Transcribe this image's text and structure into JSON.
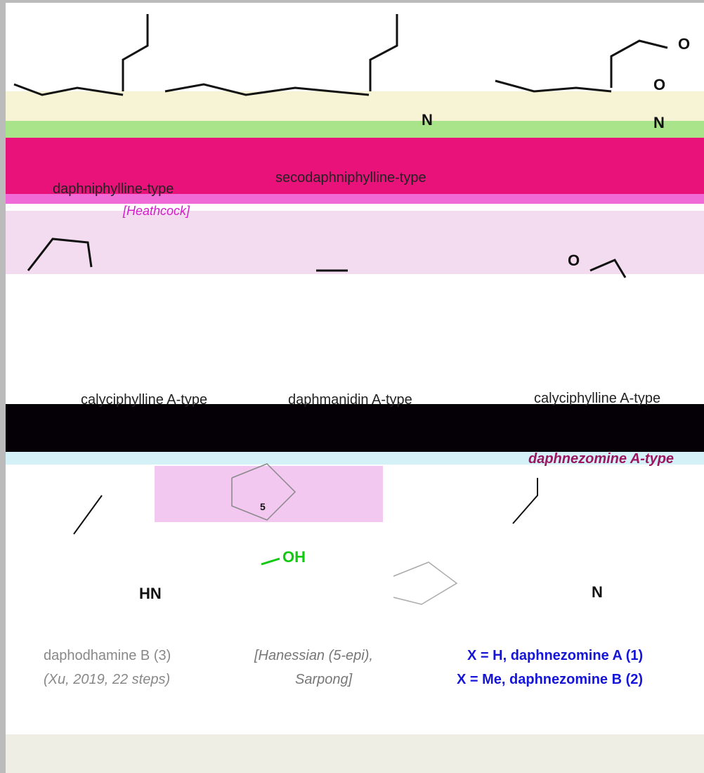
{
  "row1": {
    "labels": [
      "daphniphylline-type",
      "secodaphniphylline-type",
      "[Heathcock]"
    ]
  },
  "row2": {
    "labels": [
      "calyciphylline A-type",
      "daphmanidin A-type",
      "calyciphylline A-type",
      "daphnezomine A-type"
    ]
  },
  "structures": {
    "atoms": [
      "O",
      "O",
      "N",
      "N",
      "O",
      "5",
      "OH",
      "HN",
      "N"
    ]
  },
  "compounds": {
    "left": {
      "name": "daphodhamine B (3)",
      "ref": "(Xu, 2019, 22 steps)"
    },
    "middle": {
      "ref1": "[Hanessian (5-epi),",
      "ref2": "Sarpong]"
    },
    "right": {
      "name1": "X = H, daphnezomine A (1)",
      "name2": "X = Me, daphnezomine B (2)"
    }
  }
}
